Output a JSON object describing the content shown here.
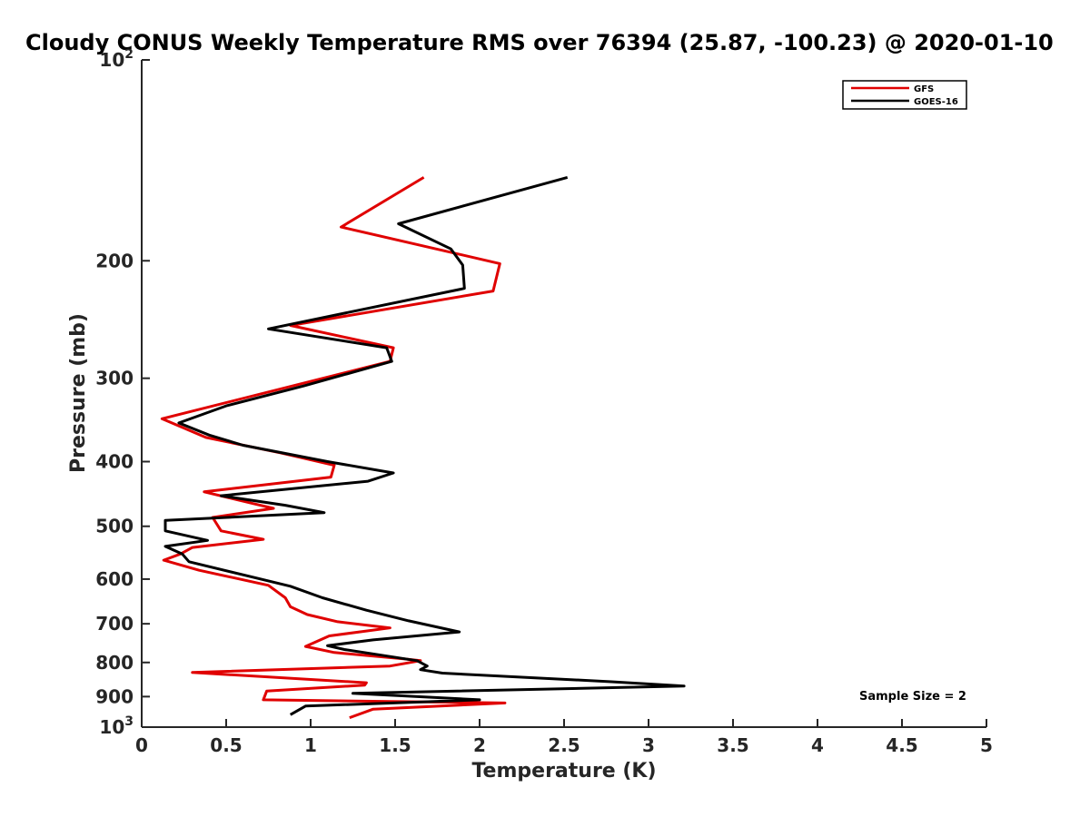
{
  "chart_data": {
    "type": "line",
    "title": "Cloudy CONUS Weekly Temperature RMS over 76394 (25.87, -100.23) @ 2020-01-10",
    "xlabel": "Temperature (K)",
    "ylabel": "Pressure (mb)",
    "xlim": [
      0,
      5
    ],
    "ylim": [
      100,
      1000
    ],
    "y_scale": "log",
    "y_reversed": true,
    "grid": false,
    "legend_position": "top-right",
    "x_ticks": [
      {
        "value": 0,
        "label": "0"
      },
      {
        "value": 0.5,
        "label": "0.5"
      },
      {
        "value": 1,
        "label": "1"
      },
      {
        "value": 1.5,
        "label": "1.5"
      },
      {
        "value": 2,
        "label": "2"
      },
      {
        "value": 2.5,
        "label": "2.5"
      },
      {
        "value": 3,
        "label": "3"
      },
      {
        "value": 3.5,
        "label": "3.5"
      },
      {
        "value": 4,
        "label": "4"
      },
      {
        "value": 4.5,
        "label": "4.5"
      },
      {
        "value": 5,
        "label": "5"
      }
    ],
    "y_ticks": [
      {
        "value": 100,
        "label": "10",
        "sup": "2"
      },
      {
        "value": 200,
        "label": "200"
      },
      {
        "value": 300,
        "label": "300"
      },
      {
        "value": 400,
        "label": "400"
      },
      {
        "value": 500,
        "label": "500"
      },
      {
        "value": 600,
        "label": "600"
      },
      {
        "value": 700,
        "label": "700"
      },
      {
        "value": 800,
        "label": "800"
      },
      {
        "value": 900,
        "label": "900"
      },
      {
        "value": 1000,
        "label": "10",
        "sup": "3"
      }
    ],
    "series": [
      {
        "name": "GFS",
        "color": "#e00000",
        "points": [
          [
            1.67,
            150
          ],
          [
            1.18,
            178
          ],
          [
            2.12,
            202
          ],
          [
            2.08,
            222
          ],
          [
            0.88,
            250
          ],
          [
            1.49,
            270
          ],
          [
            1.47,
            283
          ],
          [
            0.12,
            345
          ],
          [
            0.38,
            368
          ],
          [
            0.82,
            388
          ],
          [
            1.14,
            405
          ],
          [
            1.12,
            422
          ],
          [
            0.37,
            444
          ],
          [
            0.67,
            463
          ],
          [
            0.78,
            470
          ],
          [
            0.42,
            485
          ],
          [
            0.47,
            508
          ],
          [
            0.72,
            523
          ],
          [
            0.3,
            538
          ],
          [
            0.23,
            550
          ],
          [
            0.13,
            562
          ],
          [
            0.34,
            582
          ],
          [
            0.75,
            613
          ],
          [
            0.85,
            640
          ],
          [
            0.88,
            660
          ],
          [
            0.98,
            678
          ],
          [
            1.16,
            695
          ],
          [
            1.47,
            710
          ],
          [
            1.11,
            730
          ],
          [
            0.97,
            757
          ],
          [
            1.14,
            773
          ],
          [
            1.55,
            790
          ],
          [
            1.65,
            795
          ],
          [
            1.47,
            810
          ],
          [
            0.3,
            828
          ],
          [
            1.33,
            858
          ],
          [
            1.32,
            865
          ],
          [
            0.74,
            883
          ],
          [
            0.72,
            910
          ],
          [
            2.15,
            920
          ],
          [
            1.37,
            940
          ],
          [
            1.23,
            968
          ]
        ]
      },
      {
        "name": "GOES-16",
        "color": "#000000",
        "points": [
          [
            2.52,
            150
          ],
          [
            1.52,
            176
          ],
          [
            1.83,
            192
          ],
          [
            1.9,
            203
          ],
          [
            1.91,
            220
          ],
          [
            0.75,
            253
          ],
          [
            1.45,
            270
          ],
          [
            1.48,
            283
          ],
          [
            0.96,
            308
          ],
          [
            0.5,
            330
          ],
          [
            0.22,
            350
          ],
          [
            0.4,
            365
          ],
          [
            0.6,
            378
          ],
          [
            1.1,
            400
          ],
          [
            1.49,
            416
          ],
          [
            1.34,
            428
          ],
          [
            0.47,
            450
          ],
          [
            0.85,
            465
          ],
          [
            1.08,
            477
          ],
          [
            0.14,
            490
          ],
          [
            0.14,
            508
          ],
          [
            0.39,
            525
          ],
          [
            0.14,
            536
          ],
          [
            0.24,
            550
          ],
          [
            0.28,
            565
          ],
          [
            0.88,
            615
          ],
          [
            1.07,
            640
          ],
          [
            1.33,
            668
          ],
          [
            1.58,
            693
          ],
          [
            1.88,
            720
          ],
          [
            1.37,
            740
          ],
          [
            1.1,
            755
          ],
          [
            1.2,
            765
          ],
          [
            1.63,
            795
          ],
          [
            1.69,
            810
          ],
          [
            1.65,
            820
          ],
          [
            1.78,
            830
          ],
          [
            2.78,
            855
          ],
          [
            3.21,
            868
          ],
          [
            1.25,
            890
          ],
          [
            2.0,
            910
          ],
          [
            0.97,
            930
          ],
          [
            0.88,
            958
          ]
        ]
      }
    ],
    "annotations": [
      "Sample Size = 2"
    ]
  }
}
